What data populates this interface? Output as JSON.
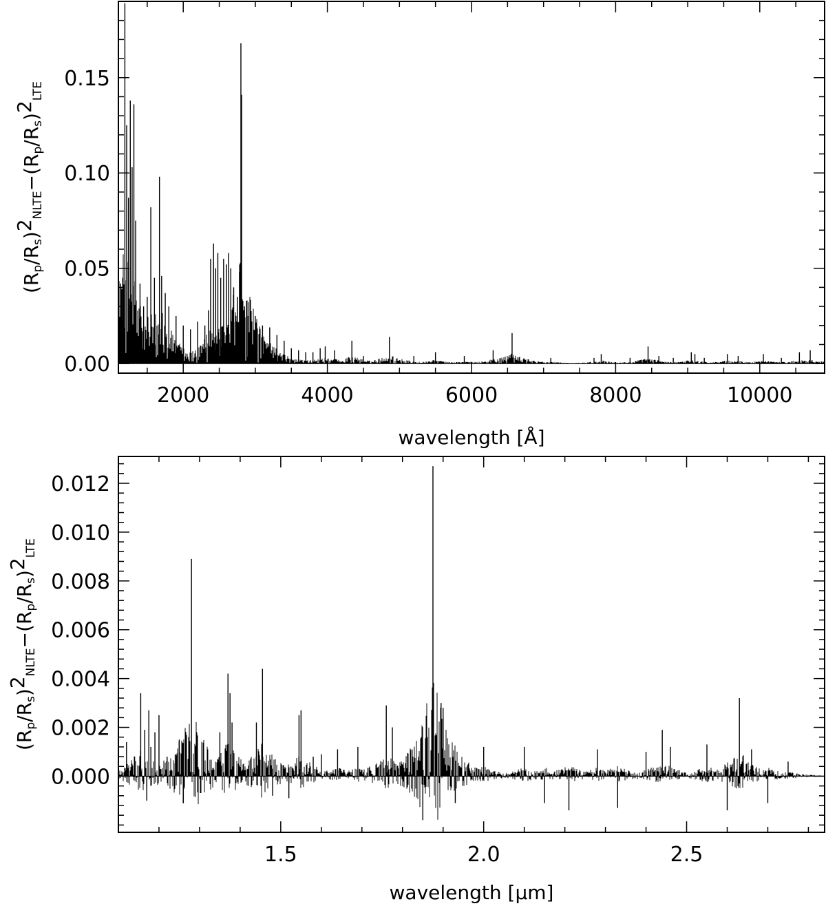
{
  "chart_data": [
    {
      "type": "line",
      "xlabel": "wavelength [Å]",
      "ylabel": {
        "parts": [
          "(R",
          "p",
          "/R",
          "s",
          ")",
          "2",
          "NLTE",
          "−(R",
          "p",
          "/R",
          "s",
          ")",
          "2",
          "LTE"
        ],
        "styles": [
          "n",
          "sub",
          "n",
          "sub",
          "n",
          "sup",
          "sub",
          "n",
          "sub",
          "n",
          "sub",
          "n",
          "sup",
          "sub"
        ]
      },
      "xlim": [
        1100,
        10900
      ],
      "ylim": [
        -0.005,
        0.19
      ],
      "xticks": [
        2000,
        4000,
        6000,
        8000,
        10000
      ],
      "xtick_labels": [
        "2000",
        "4000",
        "6000",
        "8000",
        "10000"
      ],
      "yticks": [
        0.0,
        0.05,
        0.1,
        0.15
      ],
      "ytick_labels": [
        "0.00",
        "0.05",
        "0.10",
        "0.15"
      ],
      "grid": false,
      "series_color": "#000000",
      "baseline": 0.0,
      "peaks": [
        [
          1130,
          0.042
        ],
        [
          1160,
          0.045
        ],
        [
          1190,
          0.189
        ],
        [
          1215,
          0.125
        ],
        [
          1240,
          0.087
        ],
        [
          1265,
          0.138
        ],
        [
          1290,
          0.103
        ],
        [
          1315,
          0.136
        ],
        [
          1340,
          0.075
        ],
        [
          1400,
          0.042
        ],
        [
          1450,
          0.03
        ],
        [
          1500,
          0.035
        ],
        [
          1550,
          0.082
        ],
        [
          1600,
          0.045
        ],
        [
          1670,
          0.098
        ],
        [
          1700,
          0.046
        ],
        [
          1750,
          0.037
        ],
        [
          1800,
          0.03
        ],
        [
          1900,
          0.025
        ],
        [
          2000,
          0.02
        ],
        [
          2100,
          0.018
        ],
        [
          2200,
          0.022
        ],
        [
          2300,
          0.02
        ],
        [
          2350,
          0.028
        ],
        [
          2380,
          0.055
        ],
        [
          2420,
          0.063
        ],
        [
          2450,
          0.05
        ],
        [
          2480,
          0.058
        ],
        [
          2520,
          0.045
        ],
        [
          2560,
          0.055
        ],
        [
          2600,
          0.052
        ],
        [
          2630,
          0.058
        ],
        [
          2660,
          0.05
        ],
        [
          2700,
          0.04
        ],
        [
          2750,
          0.035
        ],
        [
          2780,
          0.048
        ],
        [
          2800,
          0.168
        ],
        [
          2810,
          0.141
        ],
        [
          2850,
          0.03
        ],
        [
          2900,
          0.025
        ],
        [
          3000,
          0.025
        ],
        [
          3100,
          0.02
        ],
        [
          3200,
          0.019
        ],
        [
          3300,
          0.015
        ],
        [
          3400,
          0.012
        ],
        [
          3500,
          0.008
        ],
        [
          3600,
          0.007
        ],
        [
          3700,
          0.006
        ],
        [
          3800,
          0.006
        ],
        [
          3900,
          0.008
        ],
        [
          3970,
          0.009
        ],
        [
          4100,
          0.007
        ],
        [
          4340,
          0.012
        ],
        [
          4500,
          0.004
        ],
        [
          4861,
          0.014
        ],
        [
          5200,
          0.004
        ],
        [
          5500,
          0.006
        ],
        [
          5900,
          0.004
        ],
        [
          6300,
          0.007
        ],
        [
          6563,
          0.016
        ],
        [
          7100,
          0.003
        ],
        [
          7700,
          0.003
        ],
        [
          7800,
          0.005
        ],
        [
          8200,
          0.003
        ],
        [
          8450,
          0.009
        ],
        [
          8600,
          0.004
        ],
        [
          8800,
          0.003
        ],
        [
          9050,
          0.006
        ],
        [
          9100,
          0.005
        ],
        [
          9230,
          0.003
        ],
        [
          9550,
          0.005
        ],
        [
          9700,
          0.004
        ],
        [
          10050,
          0.005
        ],
        [
          10300,
          0.003
        ],
        [
          10550,
          0.006
        ],
        [
          10700,
          0.007
        ]
      ]
    },
    {
      "type": "line",
      "xlabel": "wavelength [μm]",
      "ylabel": {
        "parts": [
          "(R",
          "p",
          "/R",
          "s",
          ")",
          "2",
          "NLTE",
          "−(R",
          "p",
          "/R",
          "s",
          ")",
          "2",
          "LTE"
        ],
        "styles": [
          "n",
          "sub",
          "n",
          "sub",
          "n",
          "sup",
          "sub",
          "n",
          "sub",
          "n",
          "sub",
          "n",
          "sup",
          "sub"
        ]
      },
      "xlim": [
        1.1,
        2.84
      ],
      "ylim": [
        -0.0023,
        0.0131
      ],
      "xticks": [
        1.5,
        2.0,
        2.5
      ],
      "xtick_labels": [
        "1.5",
        "2.0",
        "2.5"
      ],
      "yticks": [
        0.0,
        0.002,
        0.004,
        0.006,
        0.008,
        0.01,
        0.012
      ],
      "ytick_labels": [
        "0.000",
        "0.002",
        "0.004",
        "0.006",
        "0.008",
        "0.010",
        "0.012"
      ],
      "grid": false,
      "series_color": "#000000",
      "baseline": 0.0,
      "peaks": [
        [
          1.12,
          0.0014
        ],
        [
          1.14,
          0.0008
        ],
        [
          1.155,
          0.0034
        ],
        [
          1.165,
          0.0019
        ],
        [
          1.17,
          -0.001
        ],
        [
          1.175,
          0.0027
        ],
        [
          1.18,
          0.0012
        ],
        [
          1.19,
          0.0018
        ],
        [
          1.2,
          0.0025
        ],
        [
          1.22,
          0.0008
        ],
        [
          1.24,
          0.0009
        ],
        [
          1.25,
          0.0015
        ],
        [
          1.26,
          -0.0011
        ],
        [
          1.28,
          0.0089
        ],
        [
          1.32,
          0.0011
        ],
        [
          1.35,
          0.0018
        ],
        [
          1.37,
          0.0042
        ],
        [
          1.375,
          0.0034
        ],
        [
          1.38,
          0.0022
        ],
        [
          1.44,
          0.0022
        ],
        [
          1.455,
          0.0044
        ],
        [
          1.48,
          -0.0008
        ],
        [
          1.52,
          -0.0009
        ],
        [
          1.545,
          0.0025
        ],
        [
          1.55,
          0.0027
        ],
        [
          1.58,
          0.0008
        ],
        [
          1.6,
          0.0009
        ],
        [
          1.64,
          0.0011
        ],
        [
          1.69,
          0.0012
        ],
        [
          1.76,
          0.0029
        ],
        [
          1.775,
          0.002
        ],
        [
          1.85,
          -0.0018
        ],
        [
          1.875,
          0.0127
        ],
        [
          1.895,
          0.003
        ],
        [
          1.9,
          0.0028
        ],
        [
          1.93,
          -0.0011
        ],
        [
          2.0,
          0.0012
        ],
        [
          2.1,
          0.0012
        ],
        [
          2.15,
          -0.0011
        ],
        [
          2.21,
          -0.0014
        ],
        [
          2.28,
          0.0011
        ],
        [
          2.33,
          -0.0013
        ],
        [
          2.4,
          0.001
        ],
        [
          2.44,
          0.0019
        ],
        [
          2.46,
          0.0012
        ],
        [
          2.55,
          0.0013
        ],
        [
          2.6,
          -0.0014
        ],
        [
          2.63,
          0.0032
        ],
        [
          2.66,
          0.0011
        ],
        [
          2.7,
          -0.0011
        ],
        [
          2.75,
          0.0006
        ]
      ]
    }
  ]
}
